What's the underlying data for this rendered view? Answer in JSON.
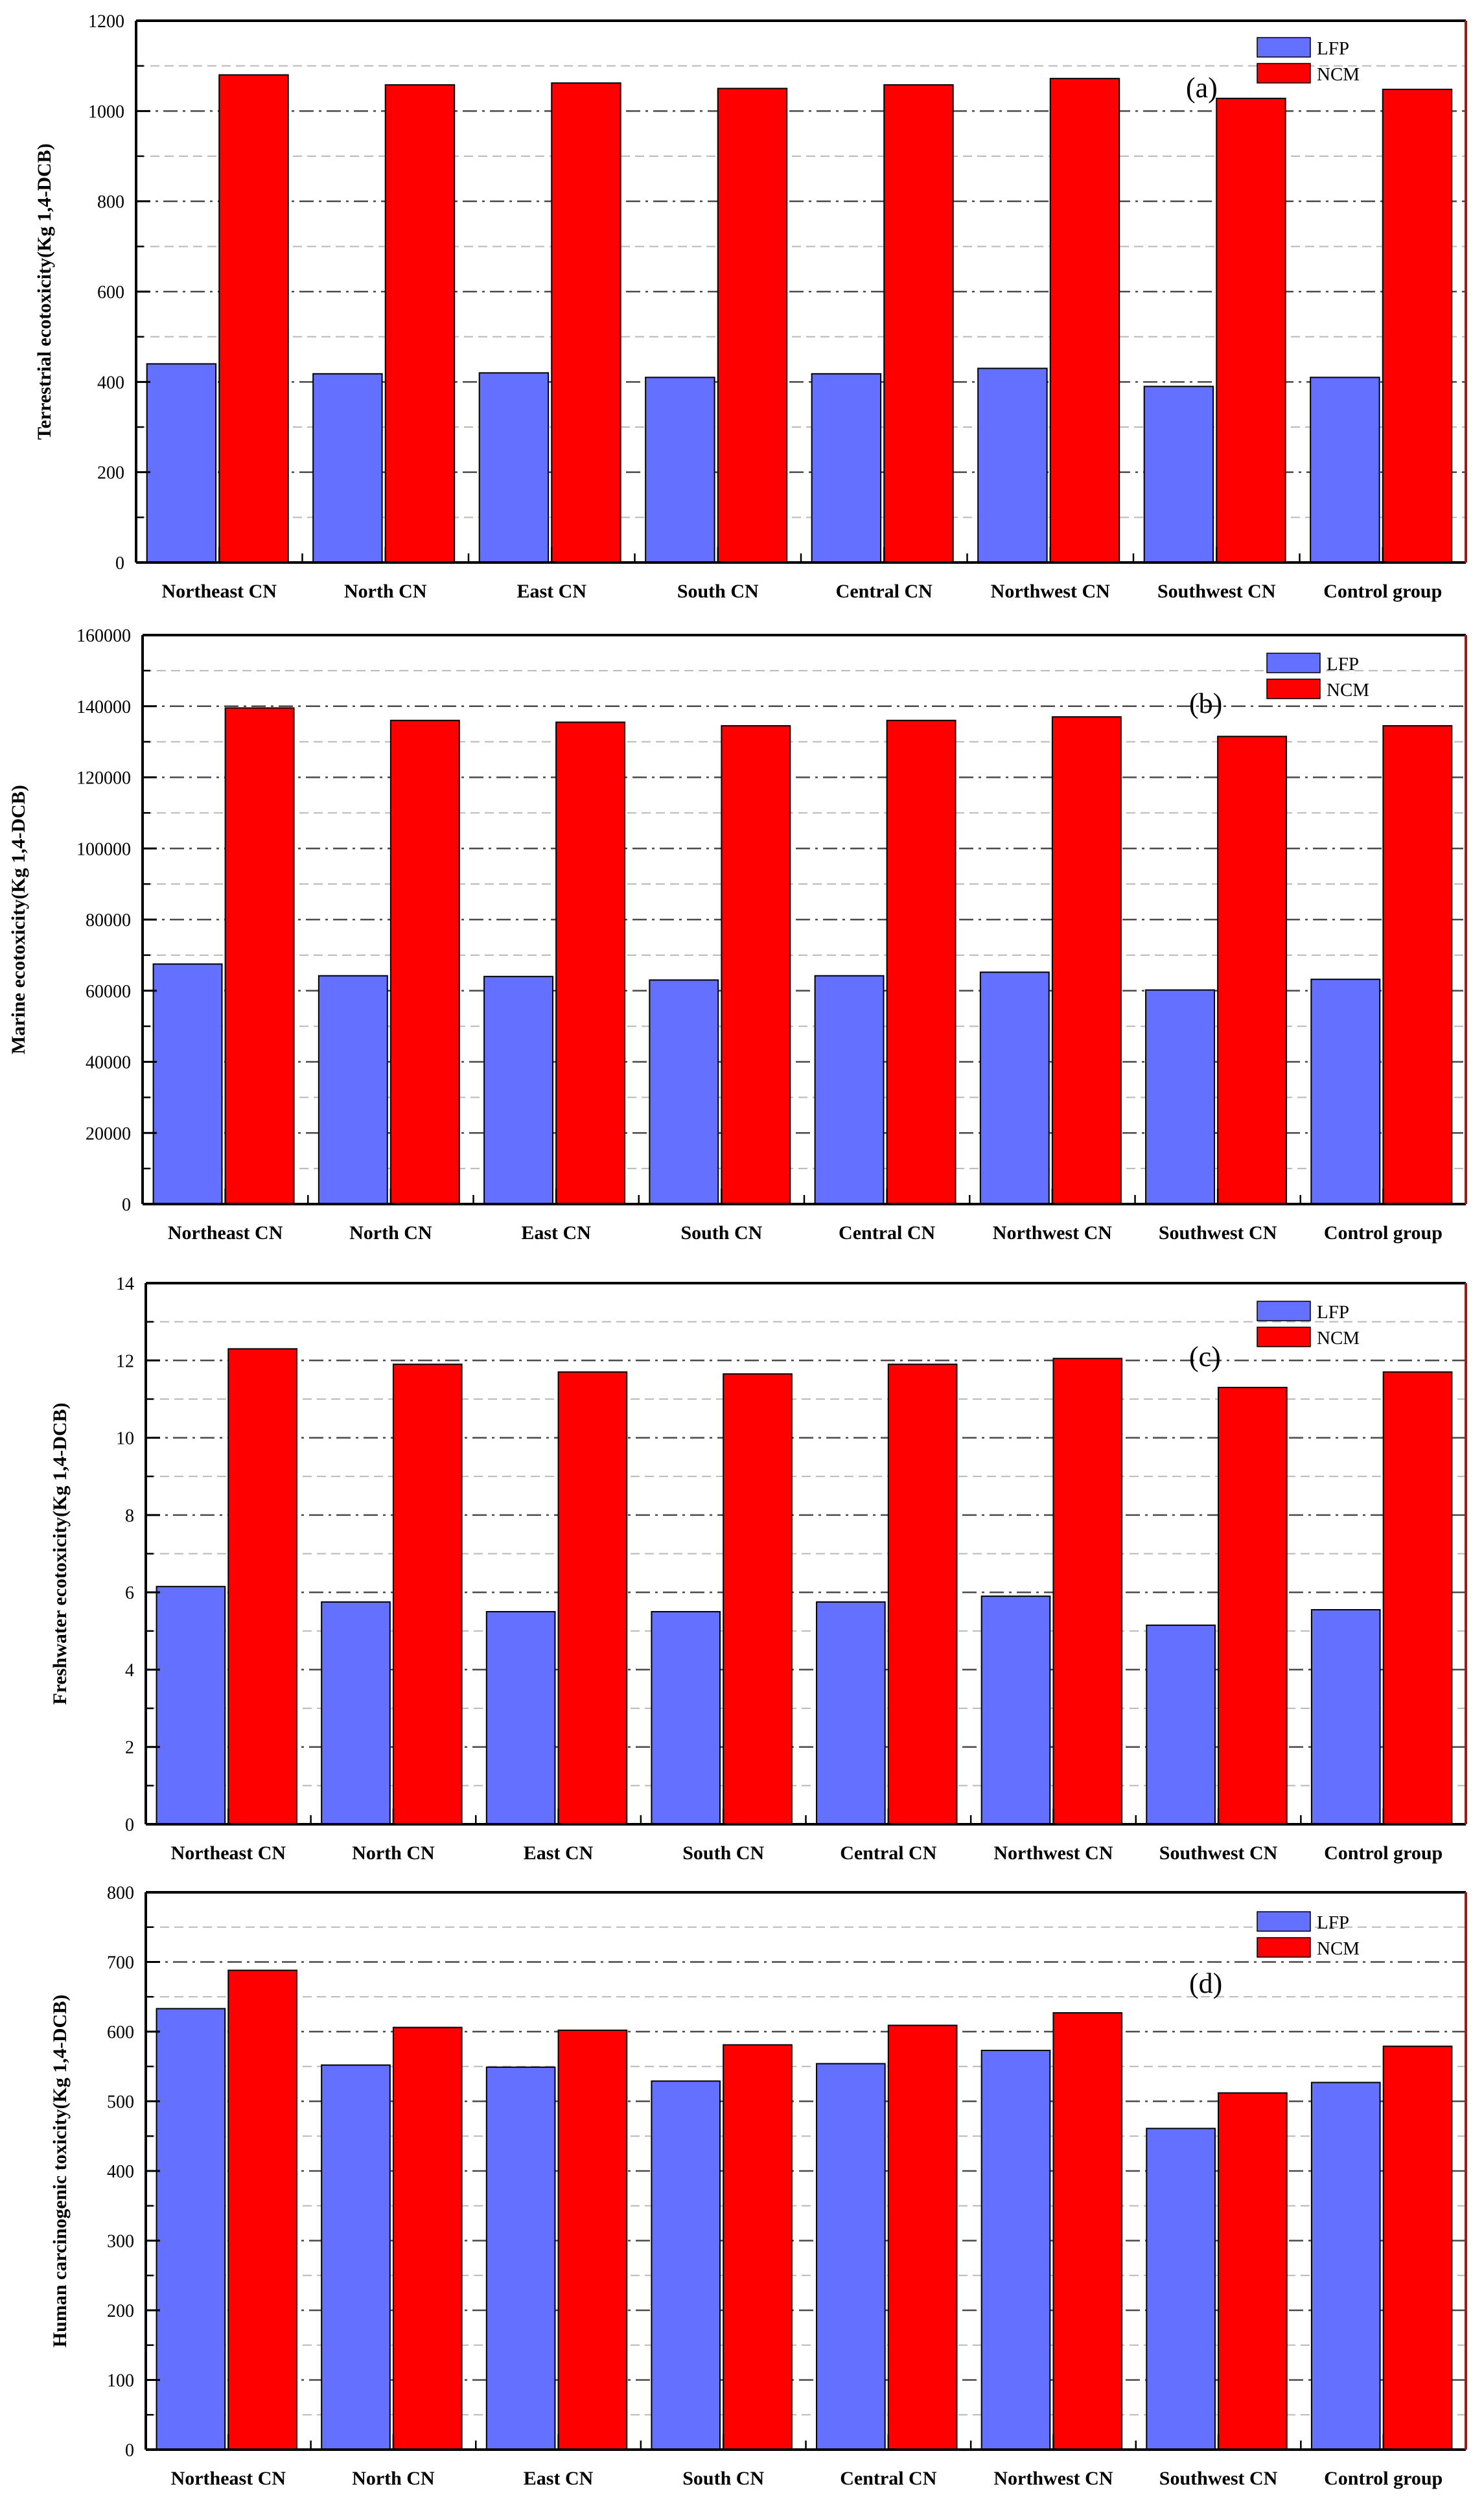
{
  "chart_data": [
    {
      "type": "bar",
      "panel_tag": "(a)",
      "ylabel": "Terrestrial ecotoxicity(Kg 1,4-DCB)",
      "ylim": [
        0,
        1200
      ],
      "yticks": [
        0,
        200,
        400,
        600,
        800,
        1000,
        1200
      ],
      "ytick_labels": [
        "0",
        "200",
        "400",
        "600",
        "800",
        "1000",
        "1200"
      ],
      "categories": [
        "Northeast CN",
        "North CN",
        "East CN",
        "South CN",
        "Central CN",
        "Northwest CN",
        "Southwest CN",
        "Control group"
      ],
      "series": [
        {
          "name": "LFP",
          "color": "#6470ff",
          "values": [
            440,
            418,
            420,
            410,
            418,
            430,
            390,
            410
          ]
        },
        {
          "name": "NCM",
          "color": "#ff0000",
          "values": [
            1080,
            1058,
            1062,
            1050,
            1058,
            1072,
            1028,
            1048
          ]
        }
      ],
      "legend": [
        "LFP",
        "NCM"
      ]
    },
    {
      "type": "bar",
      "panel_tag": "(b)",
      "ylabel": "Marine ecotoxicity(Kg 1,4-DCB)",
      "ylim": [
        0,
        160000
      ],
      "yticks": [
        0,
        20000,
        40000,
        60000,
        80000,
        100000,
        120000,
        140000,
        160000
      ],
      "ytick_labels": [
        "0",
        "20000",
        "40000",
        "60000",
        "80000",
        "100000",
        "120000",
        "140000",
        "160000"
      ],
      "categories": [
        "Northeast CN",
        "North CN",
        "East CN",
        "South CN",
        "Central CN",
        "Northwest CN",
        "Southwest CN",
        "Control group"
      ],
      "series": [
        {
          "name": "LFP",
          "color": "#6470ff",
          "values": [
            67500,
            64200,
            64000,
            63000,
            64200,
            65200,
            60200,
            63200
          ]
        },
        {
          "name": "NCM",
          "color": "#ff0000",
          "values": [
            139500,
            136000,
            135500,
            134500,
            136000,
            137000,
            131500,
            134500
          ]
        }
      ],
      "legend": [
        "LFP",
        "NCM"
      ]
    },
    {
      "type": "bar",
      "panel_tag": "(c)",
      "ylabel": "Freshwater ecotoxicity(Kg 1,4-DCB)",
      "ylim": [
        0,
        14
      ],
      "yticks": [
        0,
        2,
        4,
        6,
        8,
        10,
        12,
        14
      ],
      "ytick_labels": [
        "0",
        "2",
        "4",
        "6",
        "8",
        "10",
        "12",
        "14"
      ],
      "categories": [
        "Northeast CN",
        "North CN",
        "East CN",
        "South CN",
        "Central CN",
        "Northwest CN",
        "Southwest CN",
        "Control group"
      ],
      "series": [
        {
          "name": "LFP",
          "color": "#6470ff",
          "values": [
            6.15,
            5.75,
            5.5,
            5.5,
            5.75,
            5.9,
            5.15,
            5.55
          ]
        },
        {
          "name": "NCM",
          "color": "#ff0000",
          "values": [
            12.3,
            11.9,
            11.7,
            11.65,
            11.9,
            12.05,
            11.3,
            11.7
          ]
        }
      ],
      "legend": [
        "LFP",
        "NCM"
      ]
    },
    {
      "type": "bar",
      "panel_tag": "(d)",
      "ylabel": "Human carcinogenic toxicity(Kg 1,4-DCB)",
      "ylim": [
        0,
        800
      ],
      "yticks": [
        0,
        100,
        200,
        300,
        400,
        500,
        600,
        700,
        800
      ],
      "ytick_labels": [
        "0",
        "100",
        "200",
        "300",
        "400",
        "500",
        "600",
        "700",
        "800"
      ],
      "categories": [
        "Northeast CN",
        "North CN",
        "East CN",
        "South CN",
        "Central CN",
        "Northwest CN",
        "Southwest CN",
        "Control group"
      ],
      "series": [
        {
          "name": "LFP",
          "color": "#6470ff",
          "values": [
            633,
            552,
            549,
            529,
            554,
            573,
            461,
            527
          ]
        },
        {
          "name": "NCM",
          "color": "#ff0000",
          "values": [
            688,
            606,
            602,
            581,
            609,
            627,
            512,
            579
          ]
        }
      ],
      "legend": [
        "LFP",
        "NCM"
      ]
    }
  ]
}
